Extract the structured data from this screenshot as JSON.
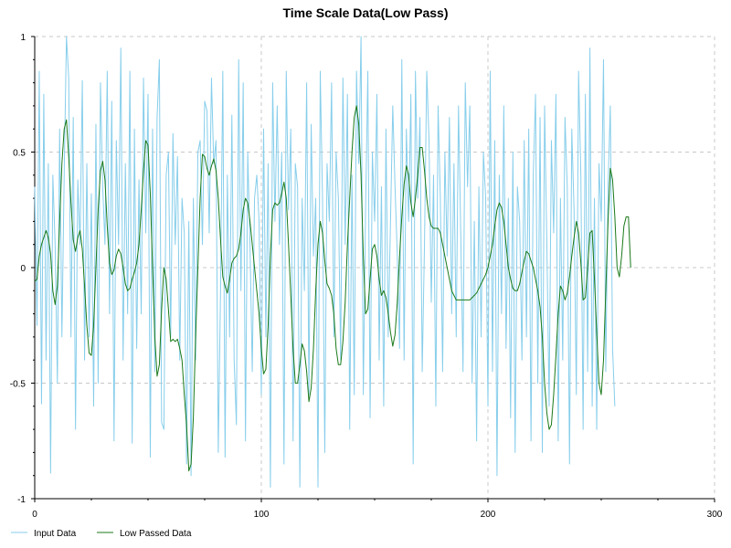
{
  "chart_data": {
    "type": "line",
    "title": "Time Scale Data(Low Pass)",
    "xlabel": "",
    "ylabel": "",
    "xlim": [
      0,
      300
    ],
    "ylim": [
      -1,
      1
    ],
    "x_ticks": [
      0,
      100,
      200,
      300
    ],
    "y_ticks": [
      -1,
      -0.5,
      0,
      0.5,
      1
    ],
    "x_tick_labels": [
      "0",
      "100",
      "200",
      "300"
    ],
    "y_tick_labels": [
      "-1",
      "-0.5",
      "0",
      "0.5",
      "1"
    ],
    "grid": true,
    "legend_position": "bottom-left",
    "series": [
      {
        "name": "Input Data",
        "color": "#87ceeb",
        "x_start": 0,
        "x_step": 1,
        "values": [
          0.35,
          -0.25,
          0.85,
          -0.59,
          0.75,
          -0.4,
          0.45,
          -0.89,
          0.4,
          0.1,
          -0.5,
          0.6,
          -0.3,
          0.4,
          1.0,
          0.82,
          -0.3,
          0.65,
          -0.7,
          0.38,
          0.1,
          0.81,
          -0.4,
          0.45,
          -0.3,
          0.32,
          -0.6,
          0.62,
          -0.5,
          0.8,
          0.35,
          0.1,
          0.85,
          -0.2,
          0.72,
          -0.75,
          0.55,
          0.1,
          0.95,
          -0.4,
          0.45,
          -0.2,
          0.85,
          -0.76,
          0.6,
          -0.35,
          0.38,
          -0.2,
          0.82,
          0.15,
          0.75,
          -0.82,
          0.6,
          -0.45,
          0.65,
          0.9,
          -0.67,
          -0.7,
          0.4,
          0.5,
          -0.3,
          0.58,
          0.1,
          0.48,
          -0.4,
          0.3,
          0.15,
          -0.85,
          0.2,
          -0.9,
          0.3,
          -0.4,
          0.5,
          0.55,
          0.1,
          0.72,
          0.68,
          0.15,
          0.82,
          0.45,
          0.55,
          -0.8,
          -0.1,
          0.85,
          -0.82,
          0.4,
          -0.3,
          0.66,
          -0.4,
          -0.68,
          0.9,
          -0.1,
          0.8,
          -0.75,
          0.5,
          0.1,
          -0.45,
          0.3,
          0.4,
          0.2,
          -0.55,
          0.6,
          -0.3,
          0.45,
          -0.95,
          0.8,
          0.2,
          0.7,
          0.1,
          0.5,
          -0.85,
          0.85,
          0.25,
          0.6,
          -0.75,
          0.45,
          0.35,
          -0.95,
          0.3,
          -0.1,
          0.8,
          -0.55,
          0.62,
          0.05,
          0.3,
          -0.95,
          0.85,
          0.3,
          -0.8,
          0.45,
          0.2,
          0.8,
          -0.3,
          0.5,
          0.3,
          -0.4,
          0.82,
          0.1,
          0.75,
          -0.7,
          0.4,
          -0.55,
          0.85,
          0.45,
          1.0,
          -0.55,
          0.25,
          0.85,
          -0.65,
          0.5,
          0.2,
          0.75,
          -0.4,
          0.35,
          -0.6,
          0.6,
          -0.3,
          0.2,
          0.7,
          0.35,
          0.05,
          -0.35,
          0.9,
          -0.4,
          0.6,
          0.2,
          0.75,
          -0.85,
          0.85,
          0.3,
          0.65,
          -0.45,
          0.1,
          0.85,
          0.55,
          -0.15,
          0.4,
          -0.6,
          0.7,
          0.3,
          -0.45,
          0.5,
          0.05,
          0.65,
          -0.2,
          0.45,
          -0.3,
          0.7,
          0.15,
          -0.45,
          0.8,
          0.35,
          0.7,
          -0.5,
          0.2,
          -0.75,
          0.35,
          -0.3,
          0.5,
          0.3,
          -0.6,
          0.85,
          -0.45,
          0.55,
          -0.9,
          0.4,
          -0.2,
          0.7,
          -0.35,
          0.3,
          -0.65,
          0.5,
          -0.8,
          0.35,
          0.2,
          -0.4,
          0.55,
          -0.3,
          0.6,
          -0.75,
          0.4,
          0.75,
          -0.5,
          0.65,
          -0.8,
          0.7,
          0.1,
          -0.6,
          0.55,
          0.15,
          0.75,
          -0.75,
          0.3,
          -0.4,
          0.65,
          0.35,
          -0.85,
          0.6,
          0.25,
          -0.55,
          0.85,
          0.4,
          -0.7,
          0.75,
          -0.45,
          0.95,
          -0.6,
          0.3,
          -0.7,
          0.45,
          0.2,
          0.9,
          -0.45,
          0.35,
          0.7,
          -0.35,
          -0.6
        ]
      },
      {
        "name": "Low Passed Data",
        "color": "#1a7a1a",
        "x_start": 0,
        "x_step": 1,
        "values": [
          -0.06,
          -0.05,
          0.05,
          0.1,
          0.13,
          0.16,
          0.13,
          0.06,
          -0.1,
          -0.16,
          -0.08,
          0.2,
          0.45,
          0.6,
          0.64,
          0.48,
          0.28,
          0.12,
          0.07,
          0.13,
          0.16,
          0.08,
          -0.08,
          -0.25,
          -0.37,
          -0.38,
          -0.25,
          0.0,
          0.25,
          0.42,
          0.46,
          0.38,
          0.18,
          0.02,
          -0.03,
          -0.01,
          0.05,
          0.08,
          0.06,
          0.0,
          -0.07,
          -0.1,
          -0.09,
          -0.05,
          -0.02,
          0.02,
          0.1,
          0.25,
          0.42,
          0.55,
          0.53,
          0.32,
          0.0,
          -0.3,
          -0.47,
          -0.42,
          -0.18,
          0.0,
          -0.05,
          -0.18,
          -0.32,
          -0.31,
          -0.32,
          -0.31,
          -0.35,
          -0.4,
          -0.55,
          -0.68,
          -0.88,
          -0.85,
          -0.65,
          -0.3,
          0.0,
          0.3,
          0.49,
          0.48,
          0.43,
          0.4,
          0.44,
          0.47,
          0.42,
          0.3,
          0.12,
          -0.04,
          -0.08,
          -0.11,
          -0.05,
          0.02,
          0.04,
          0.05,
          0.08,
          0.15,
          0.25,
          0.3,
          0.28,
          0.2,
          0.1,
          0.0,
          -0.1,
          -0.2,
          -0.35,
          -0.46,
          -0.44,
          -0.25,
          0.05,
          0.25,
          0.28,
          0.27,
          0.28,
          0.32,
          0.37,
          0.3,
          0.1,
          -0.12,
          -0.35,
          -0.5,
          -0.5,
          -0.42,
          -0.33,
          -0.36,
          -0.45,
          -0.58,
          -0.52,
          -0.35,
          -0.1,
          0.1,
          0.2,
          0.15,
          0.03,
          -0.07,
          -0.09,
          -0.12,
          -0.2,
          -0.35,
          -0.42,
          -0.42,
          -0.32,
          -0.15,
          0.1,
          0.3,
          0.5,
          0.65,
          0.7,
          0.62,
          0.4,
          0.05,
          -0.2,
          -0.18,
          -0.05,
          0.08,
          0.1,
          0.05,
          -0.05,
          -0.12,
          -0.1,
          -0.13,
          -0.2,
          -0.28,
          -0.34,
          -0.29,
          -0.15,
          0.05,
          0.22,
          0.36,
          0.44,
          0.4,
          0.28,
          0.22,
          0.3,
          0.4,
          0.52,
          0.52,
          0.42,
          0.3,
          0.22,
          0.18,
          0.17,
          0.17,
          0.17,
          0.15,
          0.1,
          0.05,
          0.0,
          -0.05,
          -0.1,
          -0.12,
          -0.14,
          -0.14,
          -0.14,
          -0.14,
          -0.14,
          -0.14,
          -0.14,
          -0.13,
          -0.12,
          -0.11,
          -0.09,
          -0.07,
          -0.05,
          -0.03,
          0.0,
          0.05,
          0.1,
          0.18,
          0.25,
          0.28,
          0.26,
          0.2,
          0.1,
          0.0,
          -0.05,
          -0.09,
          -0.1,
          -0.1,
          -0.07,
          -0.02,
          0.03,
          0.07,
          0.06,
          0.03,
          0.0,
          -0.05,
          -0.1,
          -0.17,
          -0.3,
          -0.5,
          -0.63,
          -0.7,
          -0.68,
          -0.55,
          -0.38,
          -0.2,
          -0.08,
          -0.1,
          -0.14,
          -0.11,
          -0.04,
          0.05,
          0.13,
          0.2,
          0.15,
          0.02,
          -0.14,
          -0.13,
          0.0,
          0.15,
          0.16,
          -0.05,
          -0.28,
          -0.5,
          -0.55,
          -0.4,
          -0.1,
          0.2,
          0.43,
          0.38,
          0.22,
          0.0,
          -0.04,
          0.05,
          0.18,
          0.22,
          0.22,
          0.0
        ]
      }
    ]
  }
}
